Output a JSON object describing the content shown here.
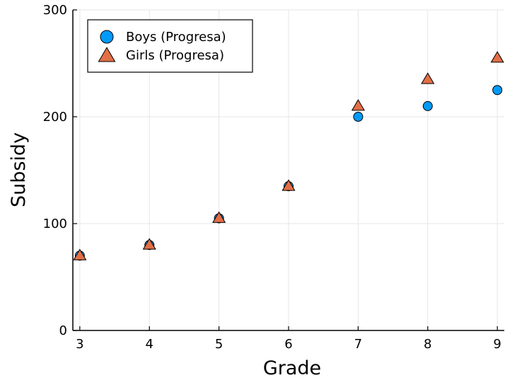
{
  "chart_data": {
    "type": "scatter",
    "title": "",
    "xlabel": "Grade",
    "ylabel": "Subsidy",
    "xlim": [
      2.9,
      9.1
    ],
    "ylim": [
      0,
      300
    ],
    "xticks": [
      3,
      4,
      5,
      6,
      7,
      8,
      9
    ],
    "yticks": [
      0,
      100,
      200,
      300
    ],
    "grid": true,
    "legend": "top-left",
    "series": [
      {
        "name": "Boys (Progresa)",
        "marker": "circle",
        "color": "#009af9",
        "x": [
          3,
          4,
          5,
          6,
          7,
          8,
          9
        ],
        "y": [
          70,
          80,
          105,
          135,
          200,
          210,
          225
        ]
      },
      {
        "name": "Girls (Progresa)",
        "marker": "triangle",
        "color": "#e26f46",
        "x": [
          3,
          4,
          5,
          6,
          7,
          8,
          9
        ],
        "y": [
          70,
          80,
          105,
          135,
          210,
          235,
          255
        ]
      }
    ]
  }
}
